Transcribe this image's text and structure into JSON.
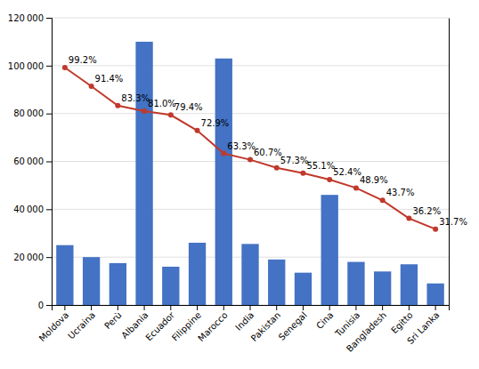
{
  "chart_data": {
    "type": "bar",
    "categories": [
      "Moldova",
      "Ucraina",
      "Perù",
      "Albania",
      "Ecuador",
      "Filippine",
      "Marocco",
      "India",
      "Pakistan",
      "Senegal",
      "Cina",
      "Tunisia",
      "Bangladesh",
      "Egitto",
      "Sri Lanka"
    ],
    "series": [
      {
        "type": "bar",
        "color": "#4472C4",
        "values": [
          25000,
          20000,
          17500,
          110000,
          16000,
          26000,
          103000,
          25500,
          19000,
          13500,
          46000,
          18000,
          14000,
          17000,
          9000
        ]
      },
      {
        "type": "line",
        "axis": "y2",
        "color": "#C0392B",
        "marker": "circle",
        "line_style": "solid",
        "data_labels": true,
        "values": [
          99.2,
          91.4,
          83.3,
          81.0,
          79.4,
          72.9,
          63.3,
          60.7,
          57.3,
          55.1,
          52.4,
          48.9,
          43.7,
          36.2,
          31.7
        ],
        "value_labels": [
          "99.2%",
          "91.4%",
          "83.3%",
          "81.0%",
          "79.4%",
          "72.9%",
          "63.3%",
          "60.7%",
          "57.3%",
          "55.1%",
          "52.4%",
          "48.9%",
          "43.7%",
          "36.2%",
          "31.7%"
        ]
      }
    ],
    "ylim": [
      0,
      120000
    ],
    "yticks": [
      0,
      {
        "value": 20000,
        "label": "20 000"
      },
      {
        "value": 40000,
        "label": "40 000"
      },
      {
        "value": 60000,
        "label": "60 000"
      },
      {
        "value": 80000,
        "label": "80 000"
      },
      {
        "value": 100000,
        "label": "100 000"
      },
      {
        "value": 120000,
        "label": "120 000"
      }
    ],
    "y2lim": [
      0,
      120
    ],
    "grid": true
  }
}
